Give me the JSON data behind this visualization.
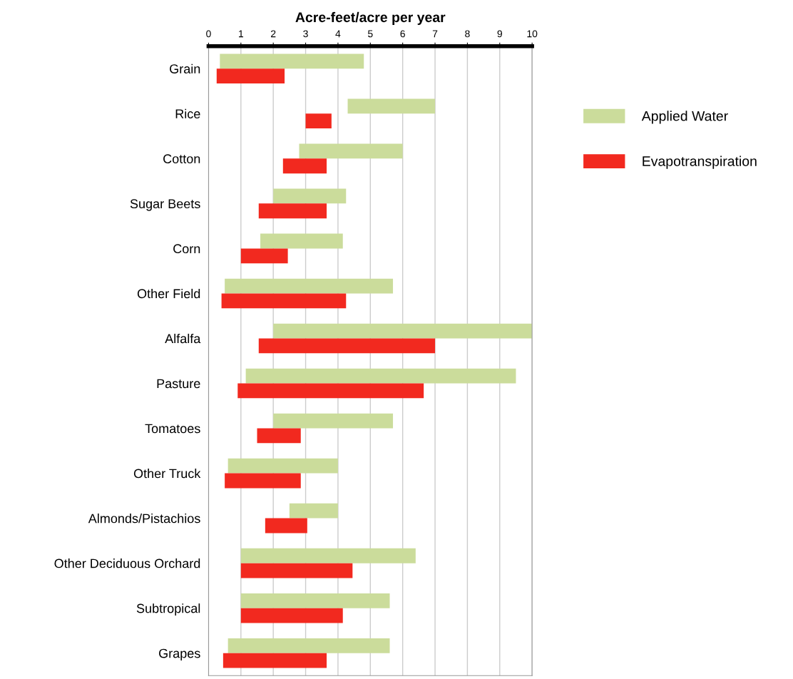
{
  "chart_data": {
    "type": "bar",
    "orientation": "horizontal",
    "xlabel": "Acre-feet/acre per year",
    "categories": [
      "Grain",
      "Rice",
      "Cotton",
      "Sugar Beets",
      "Corn",
      "Other Field",
      "Alfalfa",
      "Pasture",
      "Tomatoes",
      "Other Truck",
      "Almonds/Pistachios",
      "Other Deciduous Orchard",
      "Subtropical",
      "Grapes"
    ],
    "series": [
      {
        "name": "Applied Water",
        "color": "#cbdc9b",
        "base": [
          0.35,
          4.3,
          2.8,
          2.0,
          1.6,
          0.5,
          2.0,
          1.15,
          2.0,
          0.6,
          2.5,
          1.0,
          1.0,
          0.6
        ],
        "values": [
          4.45,
          2.7,
          3.2,
          2.25,
          2.55,
          5.2,
          8.0,
          8.35,
          3.7,
          3.4,
          1.5,
          5.4,
          4.6,
          5.0
        ]
      },
      {
        "name": "Evapotranspiration",
        "color": "#f2291f",
        "base": [
          0.25,
          3.0,
          2.3,
          1.55,
          1.0,
          0.4,
          1.55,
          0.9,
          1.5,
          0.5,
          1.75,
          1.0,
          1.0,
          0.45
        ],
        "values": [
          2.1,
          0.8,
          1.35,
          2.1,
          1.45,
          3.85,
          5.45,
          5.75,
          1.35,
          2.35,
          1.3,
          3.45,
          3.15,
          3.2
        ]
      }
    ],
    "xlim": [
      0,
      10
    ],
    "xticks": [
      0,
      1,
      2,
      3,
      4,
      5,
      6,
      7,
      8,
      9,
      10
    ],
    "grid": "x",
    "legend": "top right"
  }
}
